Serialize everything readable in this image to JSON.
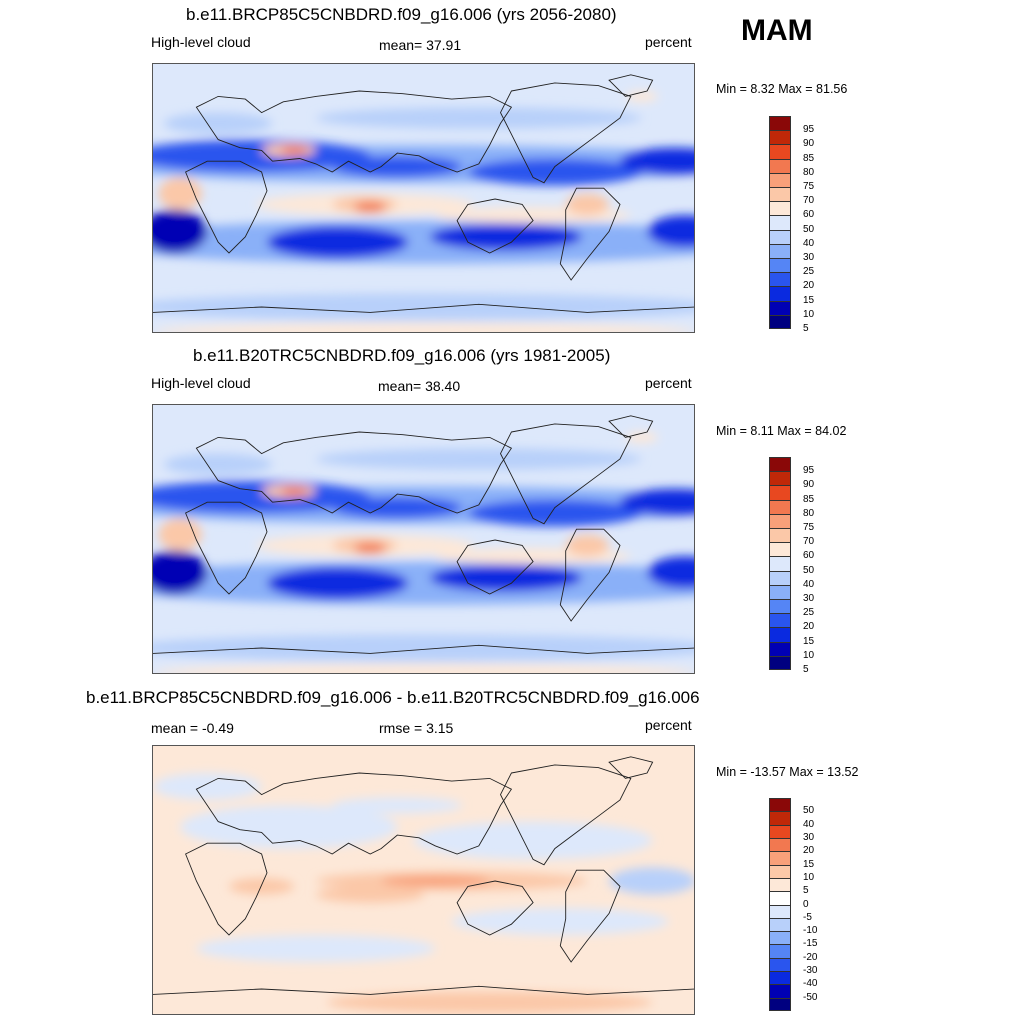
{
  "season": "MAM",
  "colors": {
    "abs_levels": [
      "#000080",
      "#0000b4",
      "#0a2ae0",
      "#2a55ee",
      "#5585f5",
      "#8ab0f8",
      "#b8d0fa",
      "#dde8fb",
      "#fde8d8",
      "#fbc8a8",
      "#f8a07a",
      "#f27850",
      "#e84820",
      "#c02808",
      "#8a0808"
    ],
    "diff_levels": [
      "#000080",
      "#0000b4",
      "#0a2ae0",
      "#2a55ee",
      "#5585f5",
      "#8ab0f8",
      "#b8d0fa",
      "#dde8fb",
      "#ffffff",
      "#fde8d8",
      "#fbc8a8",
      "#f8a07a",
      "#f27850",
      "#e84820",
      "#c02808",
      "#8a0808"
    ]
  },
  "panels": [
    {
      "title": "b.e11.BRCP85C5CNBDRD.f09_g16.006 (yrs 2056-2080)",
      "left_label": "High-level cloud",
      "center_label": "mean=  37.91",
      "right_label": "percent",
      "minmax": "Min =   8.32 Max =  81.56",
      "colorbar_labels": [
        "95",
        "90",
        "85",
        "80",
        "75",
        "70",
        "60",
        "50",
        "40",
        "30",
        "25",
        "20",
        "15",
        "10",
        "5"
      ]
    },
    {
      "title": "b.e11.B20TRC5CNBDRD.f09_g16.006 (yrs 1981-2005)",
      "left_label": "High-level cloud",
      "center_label": "mean=  38.40",
      "right_label": "percent",
      "minmax": "Min =   8.11 Max =  84.02",
      "colorbar_labels": [
        "95",
        "90",
        "85",
        "80",
        "75",
        "70",
        "60",
        "50",
        "40",
        "30",
        "25",
        "20",
        "15",
        "10",
        "5"
      ]
    },
    {
      "title": "b.e11.BRCP85C5CNBDRD.f09_g16.006 - b.e11.B20TRC5CNBDRD.f09_g16.006",
      "left_label": "mean =  -0.49",
      "center_label": "rmse =   3.15",
      "right_label": "percent",
      "minmax": "Min = -13.57 Max =  13.52",
      "colorbar_labels": [
        "50",
        "40",
        "30",
        "20",
        "15",
        "10",
        "5",
        "0",
        "-5",
        "-10",
        "-15",
        "-20",
        "-30",
        "-40",
        "-50"
      ]
    }
  ]
}
